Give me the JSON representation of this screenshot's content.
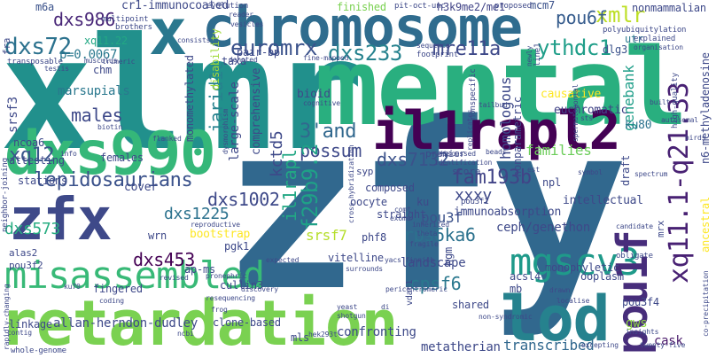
{
  "title": "word cloud",
  "palette": {
    "background": "#ffffff"
  },
  "words": [
    {
      "id": "xlmr",
      "text": "xlmr",
      "color": "#21908c"
    },
    {
      "id": "zfy",
      "text": "zfy",
      "color": "#31688e"
    },
    {
      "id": "mental",
      "text": "mental",
      "color": "#29af7f"
    },
    {
      "id": "chromosome",
      "text": "chromosome",
      "color": "#2f6c8e"
    },
    {
      "id": "x",
      "text": "x",
      "color": "#2a788e"
    },
    {
      "id": "dxs990",
      "text": "dxs990",
      "color": "#35b779"
    },
    {
      "id": "il1rapl2",
      "text": "il1rapl2",
      "color": "#440154"
    },
    {
      "id": "retardation",
      "text": "retardation",
      "color": "#7ad151"
    },
    {
      "id": "misassembled",
      "text": "misassembled",
      "color": "#38b977"
    },
    {
      "id": "zfx",
      "text": "zfx",
      "color": "#3e4989"
    },
    {
      "id": "lod",
      "text": "lod",
      "color": "#26828e"
    },
    {
      "id": "mgscv3",
      "text": "mgscv3",
      "color": "#1f9a8a"
    },
    {
      "id": "pou1f",
      "text": "pou1f",
      "color": "#472d7b"
    },
    {
      "id": "xq11_1_q21_33",
      "text": "xq11.1-q21.33",
      "color": "#482173"
    },
    {
      "id": "lepidosaurians",
      "text": "lepidosaurians",
      "color": "#3b528b"
    },
    {
      "id": "dxs72",
      "text": "dxs72",
      "color": "#2c728e"
    },
    {
      "id": "dxs986",
      "text": "dxs986",
      "color": "#482677"
    },
    {
      "id": "euromrx",
      "text": "euromrx",
      "color": "#3b528b"
    },
    {
      "id": "dxs233",
      "text": "dxs233",
      "color": "#26828e"
    },
    {
      "id": "mre11a",
      "text": "mre11a",
      "color": "#3e4989"
    },
    {
      "id": "ythdc1",
      "text": "ythdc1",
      "color": "#1f9e89"
    },
    {
      "id": "xmlr",
      "text": "xmlr",
      "color": "#bddf26"
    },
    {
      "id": "pou6f",
      "text": "pou6f",
      "color": "#365c8d"
    },
    {
      "id": "cpsf6",
      "text": "cpsf6",
      "color": "#2a788e"
    },
    {
      "id": "3and",
      "text": "3'and",
      "color": "#31688e"
    },
    {
      "id": "possum",
      "text": "possum",
      "color": "#3e4989"
    },
    {
      "id": "xq12",
      "text": "xq12",
      "color": "#39568c"
    },
    {
      "id": "males",
      "text": "males",
      "color": "#3e4989"
    },
    {
      "id": "jarid1c",
      "text": "jarid1c",
      "color": "#26828e"
    },
    {
      "id": "il1rapl",
      "text": "il1rapl",
      "color": "#22a884"
    },
    {
      "id": "f29b9_2",
      "text": "f29b9.2",
      "color": "#1fa187"
    },
    {
      "id": "kctd5",
      "text": "kctd5",
      "color": "#3e4989"
    },
    {
      "id": "fam193b",
      "text": "fam193b",
      "color": "#414487"
    },
    {
      "id": "dxs7132",
      "text": "dxs7132",
      "color": "#3b528b"
    },
    {
      "id": "dxs1002",
      "text": "dxs1002",
      "color": "#3e4989"
    },
    {
      "id": "dxs1225",
      "text": "dxs1225",
      "color": "#2c728e"
    },
    {
      "id": "dxs573",
      "text": "dxs573",
      "color": "#27ad81"
    },
    {
      "id": "rps6ka6",
      "text": "rps6ka6",
      "color": "#2c728e"
    },
    {
      "id": "srsf7",
      "text": "srsf7",
      "color": "#b5de2b"
    },
    {
      "id": "dxs453",
      "text": "dxs453",
      "color": "#440154"
    },
    {
      "id": "xxxy",
      "text": "xxxy",
      "color": "#3e4989"
    },
    {
      "id": "pou3f",
      "text": "pou3f",
      "color": "#3b528b"
    },
    {
      "id": "families",
      "text": "families",
      "color": "#6ccd5a"
    },
    {
      "id": "homologous",
      "text": "homologous",
      "color": "#3e4989"
    },
    {
      "id": "transcribed",
      "text": "transcribed",
      "color": "#31688e"
    },
    {
      "id": "metatherian",
      "text": "metatherian",
      "color": "#3e4989"
    },
    {
      "id": "cask",
      "text": "cask",
      "color": "#48186a"
    },
    {
      "id": "gws",
      "text": "gws",
      "color": "#8fd744"
    },
    {
      "id": "genebank",
      "text": "genebank",
      "color": "#1f9e89"
    },
    {
      "id": "xq11_22",
      "text": "xq11.22",
      "color": "#22a884"
    },
    {
      "id": "p_0067",
      "text": "p=0.0067",
      "color": "#2a788e"
    },
    {
      "id": "cr1_immunocoated",
      "text": "cr1-immunocoated",
      "color": "#3e4989"
    },
    {
      "id": "h3k9me2_me1",
      "text": "h3k9me2/me1",
      "color": "#414487"
    },
    {
      "id": "mcm7",
      "text": "mcm7",
      "color": "#3b528b"
    },
    {
      "id": "nonmammalian",
      "text": "nonmammalian",
      "color": "#3e4989"
    },
    {
      "id": "m6a",
      "text": "m6a",
      "color": "#3b528b"
    },
    {
      "id": "finished",
      "text": "finished",
      "color": "#7ad151"
    },
    {
      "id": "proposed",
      "text": "proposed",
      "color": "#3e4989"
    },
    {
      "id": "euchromatic",
      "text": "euchromatic",
      "color": "#414487"
    },
    {
      "id": "causative",
      "text": "causative",
      "color": "#fde725"
    },
    {
      "id": "ku80",
      "text": "ku80",
      "color": "#2c728e"
    },
    {
      "id": "dlg3",
      "text": "dlg3",
      "color": "#3b528b"
    },
    {
      "id": "utr",
      "text": "utr",
      "color": "#2a788e"
    },
    {
      "id": "large_scale",
      "text": "large-scale",
      "color": "#3e4989"
    },
    {
      "id": "comprehensive",
      "text": "comprehensive",
      "color": "#3e4989"
    },
    {
      "id": "bioid",
      "text": "bioid",
      "color": "#3e4989"
    },
    {
      "id": "disability",
      "text": "disability",
      "color": "#a0da39"
    },
    {
      "id": "monomethylated",
      "text": "monomethylated",
      "color": "#3e4989"
    },
    {
      "id": "pair_bp",
      "text": "pair-bp",
      "color": "#3e4989"
    },
    {
      "id": "taxa",
      "text": "taxa",
      "color": "#3e4989"
    },
    {
      "id": "chm",
      "text": "chm",
      "color": "#3e4989"
    },
    {
      "id": "marsupials",
      "text": "marsupials",
      "color": "#2a788e"
    },
    {
      "id": "ncoa6",
      "text": "ncoa6",
      "color": "#3e4989"
    },
    {
      "id": "attesting",
      "text": "attesting",
      "color": "#3e4989"
    },
    {
      "id": "stations",
      "text": "stations",
      "color": "#3e4989"
    },
    {
      "id": "females",
      "text": "females",
      "color": "#3e4989"
    },
    {
      "id": "alas2",
      "text": "alas2",
      "color": "#3e4989"
    },
    {
      "id": "pou3f2",
      "text": "pou3f2",
      "color": "#3e4989"
    },
    {
      "id": "cover",
      "text": "cover",
      "color": "#3e4989"
    },
    {
      "id": "bootstrap",
      "text": "bootstrap",
      "color": "#fde725"
    },
    {
      "id": "wrn",
      "text": "wrn",
      "color": "#3e4989"
    },
    {
      "id": "pgk1",
      "text": "pgk1",
      "color": "#3e4989"
    },
    {
      "id": "fingered",
      "text": "fingered",
      "color": "#3e4989"
    },
    {
      "id": "linkage",
      "text": "linkage",
      "color": "#3e4989"
    },
    {
      "id": "allan_herndon_dudley",
      "text": "allan-herndon-dudley",
      "color": "#3e4989"
    },
    {
      "id": "clone_based",
      "text": "clone-based",
      "color": "#3e4989"
    },
    {
      "id": "mls",
      "text": "mls",
      "color": "#3e4989"
    },
    {
      "id": "confronting",
      "text": "confronting",
      "color": "#3e4989"
    },
    {
      "id": "landscape",
      "text": "landscape",
      "color": "#3e4989"
    },
    {
      "id": "ap_ms",
      "text": "ap-ms",
      "color": "#3e4989"
    },
    {
      "id": "cullin3",
      "text": "cullin3",
      "color": "#3e4989"
    },
    {
      "id": "immunoabsorption",
      "text": "immunoabsorption",
      "color": "#3e4989"
    },
    {
      "id": "ceph_genethon",
      "text": "ceph/genethon",
      "color": "#3e4989"
    },
    {
      "id": "intellectual",
      "text": "intellectual",
      "color": "#3e4989"
    },
    {
      "id": "npl",
      "text": "npl",
      "color": "#3e4989"
    },
    {
      "id": "phf8",
      "text": "phf8",
      "color": "#3e4989"
    },
    {
      "id": "ku",
      "text": "ku",
      "color": "#3e4989"
    },
    {
      "id": "vitelline",
      "text": "vitelline",
      "color": "#3e4989"
    },
    {
      "id": "oocyte",
      "text": "oocyte",
      "color": "#3e4989"
    },
    {
      "id": "straight",
      "text": "straight",
      "color": "#3e4989"
    },
    {
      "id": "composed",
      "text": "composed",
      "color": "#3e4989"
    },
    {
      "id": "premier",
      "text": "premier",
      "color": "#3e4989"
    },
    {
      "id": "score",
      "text": "score",
      "color": "#3e4989"
    },
    {
      "id": "syp",
      "text": "syp",
      "color": "#3e4989"
    },
    {
      "id": "nonparametric",
      "text": "nonparametric",
      "color": "#3e4989"
    },
    {
      "id": "shared",
      "text": "shared",
      "color": "#3e4989"
    },
    {
      "id": "acsl4",
      "text": "acsl4",
      "color": "#3e4989"
    },
    {
      "id": "monophyletic",
      "text": "monophyletic",
      "color": "#3e4989"
    },
    {
      "id": "ooplasm",
      "text": "ooplasm",
      "color": "#3e4989"
    },
    {
      "id": "mb",
      "text": "mb",
      "color": "#3e4989"
    },
    {
      "id": "pou3f4",
      "text": "pou3f4",
      "color": "#3e4989"
    },
    {
      "id": "n6_methyladenosine",
      "text": "n6-methyladenosine",
      "color": "#3e4989"
    },
    {
      "id": "ancestral",
      "text": "ancestral",
      "color": "#fde725"
    },
    {
      "id": "srsf3",
      "text": "srsf3",
      "color": "#3e4989"
    },
    {
      "id": "hgm",
      "text": "hgm",
      "color": "#3e4989"
    },
    {
      "id": "draft",
      "text": "draft",
      "color": "#3e4989"
    },
    {
      "id": "mrx",
      "text": "mrx",
      "color": "#3e4989"
    },
    {
      "id": "fra",
      "text": "fra",
      "color": "#3e4989"
    },
    {
      "id": "neighbor_joining",
      "text": "neighbor-joining",
      "color": "#3e4989"
    },
    {
      "id": "whole_genome",
      "text": "whole-genome",
      "color": "#3e4989"
    },
    {
      "id": "multipoint",
      "text": "multipoint",
      "color": "#3e4989"
    },
    {
      "id": "brothers",
      "text": "brothers",
      "color": "#3e4989"
    },
    {
      "id": "musculus",
      "text": "musculus",
      "color": "#3e4989"
    },
    {
      "id": "transposable",
      "text": "transposable",
      "color": "#3e4989"
    },
    {
      "id": "testis",
      "text": "testis",
      "color": "#3e4989"
    },
    {
      "id": "trimeric",
      "text": "trimeric",
      "color": "#3e4989"
    },
    {
      "id": "evolution",
      "text": "evolution",
      "color": "#3e4989"
    },
    {
      "id": "reader",
      "text": "reader",
      "color": "#3e4989"
    },
    {
      "id": "vesicles",
      "text": "vesicles",
      "color": "#3e4989"
    },
    {
      "id": "consists",
      "text": "consists",
      "color": "#3e4989"
    },
    {
      "id": "pit_oct_unc",
      "text": "pit-oct-unc",
      "color": "#3e4989"
    },
    {
      "id": "footprint",
      "text": "footprint",
      "color": "#3e4989"
    },
    {
      "id": "sequence",
      "text": "sequence",
      "color": "#3e4989"
    },
    {
      "id": "fine_mapped",
      "text": "fine-mapped",
      "color": "#3e4989"
    },
    {
      "id": "denoted",
      "text": "denoted",
      "color": "#3e4989"
    },
    {
      "id": "polyubiquitylation",
      "text": "polyubiquitylation",
      "color": "#3e4989"
    },
    {
      "id": "explained",
      "text": "explained",
      "color": "#3e4989"
    },
    {
      "id": "organisation",
      "text": "organisation",
      "color": "#3e4989"
    },
    {
      "id": "high_quality",
      "text": "high-quality",
      "color": "#3e4989"
    },
    {
      "id": "newly",
      "text": "newly",
      "color": "#3e4989"
    },
    {
      "id": "line1",
      "text": "line1",
      "color": "#3e4989"
    },
    {
      "id": "nonspecific",
      "text": "nonspecific",
      "color": "#3e4989"
    },
    {
      "id": "cognitive",
      "text": "cognitive",
      "color": "#3e4989"
    },
    {
      "id": "tailbud",
      "text": "tailbud",
      "color": "#3e4989"
    },
    {
      "id": "sts",
      "text": "sts",
      "color": "#3e4989"
    },
    {
      "id": "autosomal",
      "text": "autosomal",
      "color": "#3e4989"
    },
    {
      "id": "birds",
      "text": "birds",
      "color": "#3e4989"
    },
    {
      "id": "built",
      "text": "built",
      "color": "#3e4989"
    },
    {
      "id": "spermatogonial",
      "text": "spermatogonial",
      "color": "#3e4989"
    },
    {
      "id": "replicates",
      "text": "replicates",
      "color": "#3e4989"
    },
    {
      "id": "beads",
      "text": "beads",
      "color": "#3e4989"
    },
    {
      "id": "discussed",
      "text": "discussed",
      "color": "#3e4989"
    },
    {
      "id": "identification",
      "text": "identification",
      "color": "#3e4989"
    },
    {
      "id": "est",
      "text": "est",
      "color": "#3e4989"
    },
    {
      "id": "symbol",
      "text": "symbol",
      "color": "#3e4989"
    },
    {
      "id": "spectrum",
      "text": "spectrum",
      "color": "#3e4989"
    },
    {
      "id": "obligate",
      "text": "obligate",
      "color": "#3e4989"
    },
    {
      "id": "candidate",
      "text": "candidate",
      "color": "#3e4989"
    },
    {
      "id": "inherited",
      "text": "inherited",
      "color": "#3e4989"
    },
    {
      "id": "theta",
      "text": "theta",
      "color": "#3e4989"
    },
    {
      "id": "fragile",
      "text": "fragile",
      "color": "#3e4989"
    },
    {
      "id": "yacs_finnish",
      "text": "yacs finnish",
      "color": "#3e4989"
    },
    {
      "id": "surrounds",
      "text": "surrounds",
      "color": "#3e4989"
    },
    {
      "id": "comt",
      "text": "comt",
      "color": "#3e4989"
    },
    {
      "id": "exome",
      "text": "exome",
      "color": "#3e4989"
    },
    {
      "id": "cross_hybridization",
      "text": "cross-hybridization",
      "color": "#3e4989"
    },
    {
      "id": "biotin",
      "text": "biotin",
      "color": "#3e4989"
    },
    {
      "id": "dysmorphism",
      "text": "dysmorphism",
      "color": "#3e4989"
    },
    {
      "id": "flanked",
      "text": "flanked",
      "color": "#3e4989"
    },
    {
      "id": "info",
      "text": "info",
      "color": "#3e4989"
    },
    {
      "id": "reproductive",
      "text": "reproductive",
      "color": "#3e4989"
    },
    {
      "id": "ku70",
      "text": "ku70",
      "color": "#3e4989"
    },
    {
      "id": "revised",
      "text": "revised",
      "color": "#3e4989"
    },
    {
      "id": "pronephric",
      "text": "pronephric",
      "color": "#3e4989"
    },
    {
      "id": "expected",
      "text": "expected",
      "color": "#3e4989"
    },
    {
      "id": "discovery",
      "text": "discovery",
      "color": "#3e4989"
    },
    {
      "id": "resequencing",
      "text": "resequencing",
      "color": "#3e4989"
    },
    {
      "id": "frog",
      "text": "frog",
      "color": "#3e4989"
    },
    {
      "id": "coding",
      "text": "coding",
      "color": "#3e4989"
    },
    {
      "id": "rapidly_changing",
      "text": "rapidly-changing",
      "color": "#3e4989"
    },
    {
      "id": "contig",
      "text": "contig",
      "color": "#3e4989"
    },
    {
      "id": "ncbi",
      "text": "ncbi",
      "color": "#3e4989"
    },
    {
      "id": "hek293t",
      "text": "hek293t",
      "color": "#3e4989"
    },
    {
      "id": "shotgun",
      "text": "shotgun",
      "color": "#3e4989"
    },
    {
      "id": "yeast",
      "text": "yeast",
      "color": "#3e4989"
    },
    {
      "id": "di",
      "text": "di",
      "color": "#3e4989"
    },
    {
      "id": "pericentromeric",
      "text": "pericentromeric",
      "color": "#3e4989"
    },
    {
      "id": "non_syndromic",
      "text": "non-syndromic",
      "color": "#3e4989"
    },
    {
      "id": "drawn",
      "text": "drawn",
      "color": "#3e4989"
    },
    {
      "id": "localise",
      "text": "localise",
      "color": "#3e4989"
    },
    {
      "id": "excepting",
      "text": "excepting",
      "color": "#3e4989"
    },
    {
      "id": "insights",
      "text": "insights",
      "color": "#3e4989"
    },
    {
      "id": "co_precipitation",
      "text": "co-precipitation",
      "color": "#3e4989"
    },
    {
      "id": "twenty_five",
      "text": "twenty-five",
      "color": "#3e4989"
    },
    {
      "id": "vdac1",
      "text": "vdac1",
      "color": "#3e4989"
    },
    {
      "id": "pou3f1",
      "text": "pou3f1",
      "color": "#3e4989"
    }
  ]
}
